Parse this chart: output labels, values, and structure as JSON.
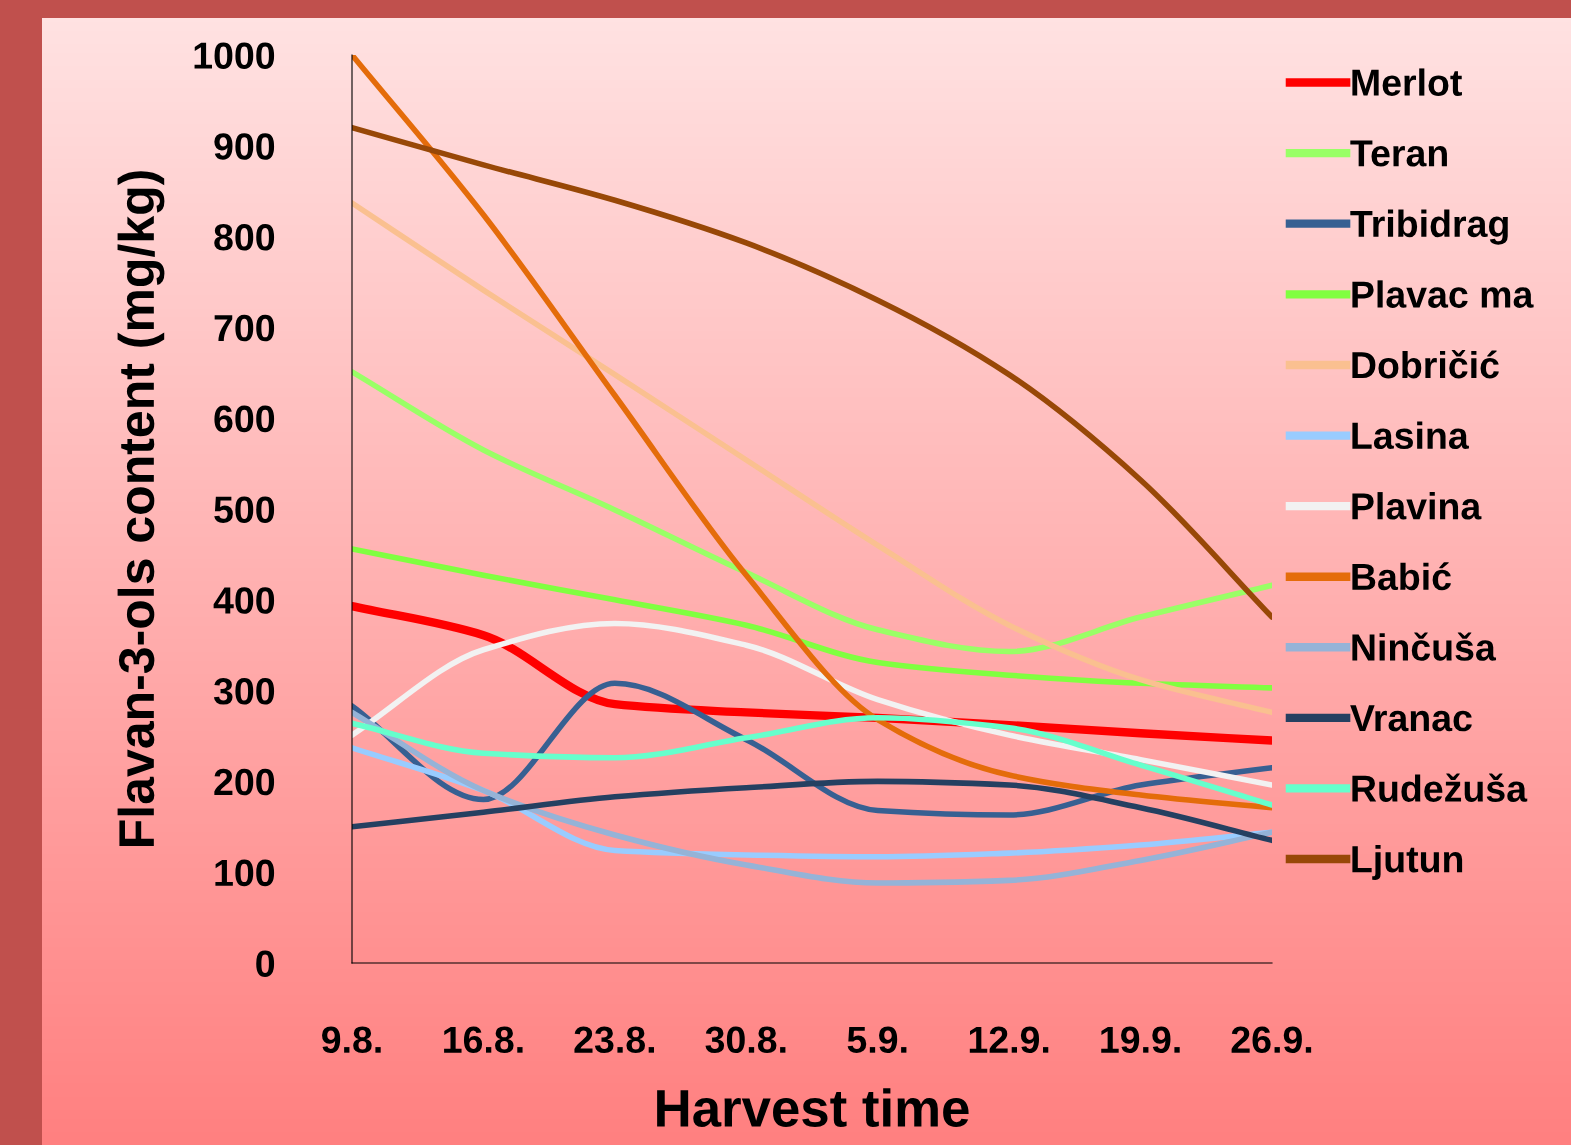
{
  "chart_data": {
    "type": "line",
    "xlabel": "Harvest time",
    "ylabel": "Flavan-3-ols content (mg/kg)",
    "categories": [
      "9.8.",
      "16.8.",
      "23.8.",
      "30.8.",
      "5.9.",
      "12.9.",
      "19.9.",
      "26.9."
    ],
    "ylim": [
      0,
      1000
    ],
    "yticks": [
      0,
      100,
      200,
      300,
      400,
      500,
      600,
      700,
      800,
      900,
      1000
    ],
    "grid": false,
    "legend": "right",
    "marker": "none",
    "line_style": "solid",
    "series": [
      {
        "name": "Merlot",
        "color": "#ff0000",
        "values": [
          393,
          361,
          285,
          276,
          270,
          262,
          253,
          245
        ]
      },
      {
        "name": "Teran",
        "color": "#99ff66",
        "values": [
          651,
          565,
          499,
          430,
          367,
          343,
          381,
          416
        ]
      },
      {
        "name": "Tribidrag",
        "color": "#376092",
        "values": [
          283,
          180,
          308,
          246,
          168,
          163,
          196,
          215
        ]
      },
      {
        "name": "Plavac ma",
        "color": "#80ff40",
        "values": [
          456,
          427,
          400,
          372,
          331,
          317,
          308,
          303
        ]
      },
      {
        "name": "Dobričić",
        "color": "#fac090",
        "values": [
          837,
          741,
          648,
          554,
          460,
          372,
          312,
          276
        ]
      },
      {
        "name": "Lasina",
        "color": "#99ccff",
        "values": [
          237,
          190,
          124,
          119,
          117,
          121,
          130,
          144
        ]
      },
      {
        "name": "Plavina",
        "color": "#f2f2f2",
        "values": [
          251,
          345,
          374,
          350,
          290,
          251,
          224,
          196
        ]
      },
      {
        "name": "Babić",
        "color": "#e46c0a",
        "values": [
          1000,
          824,
          625,
          427,
          268,
          207,
          185,
          171
        ]
      },
      {
        "name": "Ninčuša",
        "color": "#95b3d7",
        "values": [
          276,
          190,
          141,
          108,
          88,
          91,
          113,
          144
        ]
      },
      {
        "name": "Vranac",
        "color": "#254061",
        "values": [
          150,
          166,
          183,
          193,
          200,
          196,
          171,
          135
        ]
      },
      {
        "name": "Rudežuša",
        "color": "#66ffcc",
        "values": [
          264,
          231,
          226,
          248,
          270,
          259,
          218,
          174
        ]
      },
      {
        "name": "Ljutun",
        "color": "#984807",
        "values": [
          920,
          879,
          840,
          793,
          730,
          648,
          532,
          381
        ]
      }
    ]
  }
}
